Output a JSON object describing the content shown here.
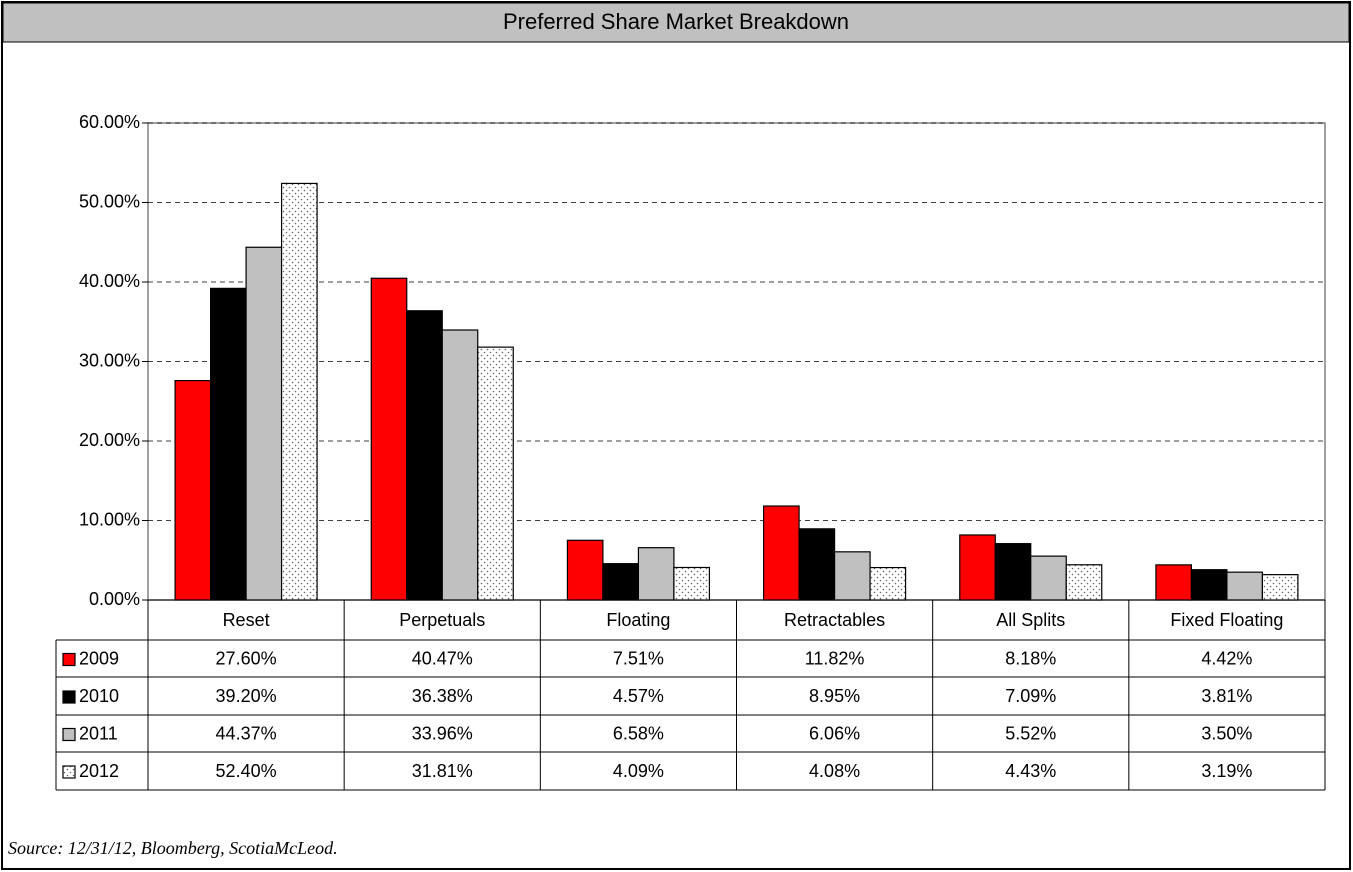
{
  "chart_data": {
    "type": "bar",
    "title": "Preferred Share Market Breakdown",
    "categories": [
      "Reset",
      "Perpetuals",
      "Floating",
      "Retractables",
      "All Splits",
      "Fixed Floating"
    ],
    "series": [
      {
        "name": "2009",
        "color": "#ff0000",
        "values": [
          27.6,
          40.47,
          7.51,
          11.82,
          8.18,
          4.42
        ],
        "value_labels": [
          "27.60%",
          "40.47%",
          "7.51%",
          "11.82%",
          "8.18%",
          "4.42%"
        ]
      },
      {
        "name": "2010",
        "color": "#000000",
        "values": [
          39.2,
          36.38,
          4.57,
          8.95,
          7.09,
          3.81
        ],
        "value_labels": [
          "39.20%",
          "36.38%",
          "4.57%",
          "8.95%",
          "7.09%",
          "3.81%"
        ]
      },
      {
        "name": "2011",
        "color": "#c0c0c0",
        "values": [
          44.37,
          33.96,
          6.58,
          6.06,
          5.52,
          3.5
        ],
        "value_labels": [
          "44.37%",
          "33.96%",
          "6.58%",
          "6.06%",
          "5.52%",
          "3.50%"
        ]
      },
      {
        "name": "2012",
        "color": "#ffffff",
        "pattern": "dotted",
        "values": [
          52.4,
          31.81,
          4.09,
          4.08,
          4.43,
          3.19
        ],
        "value_labels": [
          "52.40%",
          "31.81%",
          "4.09%",
          "4.08%",
          "4.43%",
          "3.19%"
        ]
      }
    ],
    "ylim": [
      0,
      60
    ],
    "yticks": [
      {
        "value": 0,
        "label": "0.00%"
      },
      {
        "value": 10,
        "label": "10.00%"
      },
      {
        "value": 20,
        "label": "20.00%"
      },
      {
        "value": 30,
        "label": "30.00%"
      },
      {
        "value": 40,
        "label": "40.00%"
      },
      {
        "value": 50,
        "label": "50.00%"
      },
      {
        "value": 60,
        "label": "60.00%"
      }
    ],
    "grid": true,
    "note": "Source: 12/31/12, Bloomberg, ScotiaMcLeod."
  }
}
